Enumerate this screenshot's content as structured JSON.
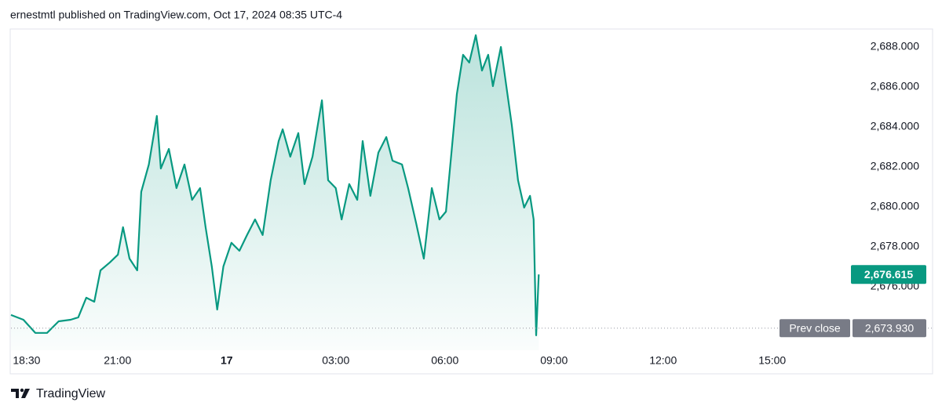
{
  "attribution": "ernestmtl published on TradingView.com, Oct 17, 2024 08:35 UTC-4",
  "brand": "TradingView",
  "chart_data": {
    "type": "area",
    "color": "#089981",
    "x": [
      18.07,
      18.41,
      18.74,
      19.06,
      19.38,
      19.71,
      19.92,
      20.14,
      20.36,
      20.53,
      20.79,
      21.01,
      21.15,
      21.33,
      21.54,
      21.65,
      21.86,
      22.08,
      22.19,
      22.41,
      22.62,
      22.84,
      23.05,
      23.27,
      23.42,
      23.59,
      23.74,
      23.91,
      24.13,
      24.35,
      24.56,
      24.78,
      24.99,
      25.21,
      25.43,
      25.54,
      25.75,
      25.97,
      26.14,
      26.36,
      26.62,
      26.79,
      27.0,
      27.16,
      27.37,
      27.59,
      27.74,
      27.95,
      28.17,
      28.39,
      28.56,
      28.82,
      28.99,
      29.21,
      29.42,
      29.64,
      29.85,
      30.03,
      30.18,
      30.33,
      30.5,
      30.67,
      30.85,
      31.02,
      31.19,
      31.32,
      31.54,
      31.69,
      31.84,
      32.01,
      32.18,
      32.34,
      32.44,
      32.51,
      32.58
    ],
    "values": [
      2674.59,
      2674.35,
      2673.69,
      2673.69,
      2674.27,
      2674.35,
      2674.47,
      2675.45,
      2675.25,
      2676.82,
      2677.22,
      2677.61,
      2678.98,
      2677.41,
      2676.82,
      2680.75,
      2682.12,
      2684.55,
      2681.92,
      2682.9,
      2680.94,
      2682.12,
      2680.35,
      2680.94,
      2678.98,
      2677.02,
      2674.86,
      2677.02,
      2678.2,
      2677.8,
      2678.59,
      2679.37,
      2678.59,
      2681.33,
      2683.29,
      2683.88,
      2682.51,
      2683.69,
      2681.14,
      2682.51,
      2685.33,
      2681.33,
      2680.94,
      2679.37,
      2681.14,
      2680.35,
      2683.29,
      2680.55,
      2682.71,
      2683.49,
      2682.31,
      2682.12,
      2680.94,
      2679.18,
      2677.41,
      2680.94,
      2679.37,
      2679.76,
      2682.71,
      2685.65,
      2687.61,
      2687.22,
      2688.59,
      2686.82,
      2687.61,
      2686.04,
      2688.0,
      2686.04,
      2684.08,
      2681.33,
      2679.96,
      2680.55,
      2679.37,
      2673.57,
      2676.615
    ],
    "xlim": [
      18.07,
      40.97
    ],
    "ylim": [
      2672.82,
      2688.86
    ],
    "xticks": [
      {
        "value": 18.5,
        "label": "18:30"
      },
      {
        "value": 21,
        "label": "21:00"
      },
      {
        "value": 24,
        "label": "17"
      },
      {
        "value": 27,
        "label": "03:00"
      },
      {
        "value": 30,
        "label": "06:00"
      },
      {
        "value": 33,
        "label": "09:00"
      },
      {
        "value": 36,
        "label": "12:00"
      },
      {
        "value": 39,
        "label": "15:00"
      }
    ],
    "yticks": [
      {
        "value": 2676,
        "label": "2,676.000"
      },
      {
        "value": 2678,
        "label": "2,678.000"
      },
      {
        "value": 2680,
        "label": "2,680.000"
      },
      {
        "value": 2682,
        "label": "2,682.000"
      },
      {
        "value": 2684,
        "label": "2,684.000"
      },
      {
        "value": 2686,
        "label": "2,686.000"
      },
      {
        "value": 2688,
        "label": "2,688.000"
      }
    ],
    "grid": false,
    "current_price": {
      "value": 2676.615,
      "label": "2,676.615",
      "color": "#089981"
    },
    "prev_close": {
      "name": "Prev close",
      "value": 2673.93,
      "label": "2,673.930",
      "color": "#787b86"
    }
  }
}
